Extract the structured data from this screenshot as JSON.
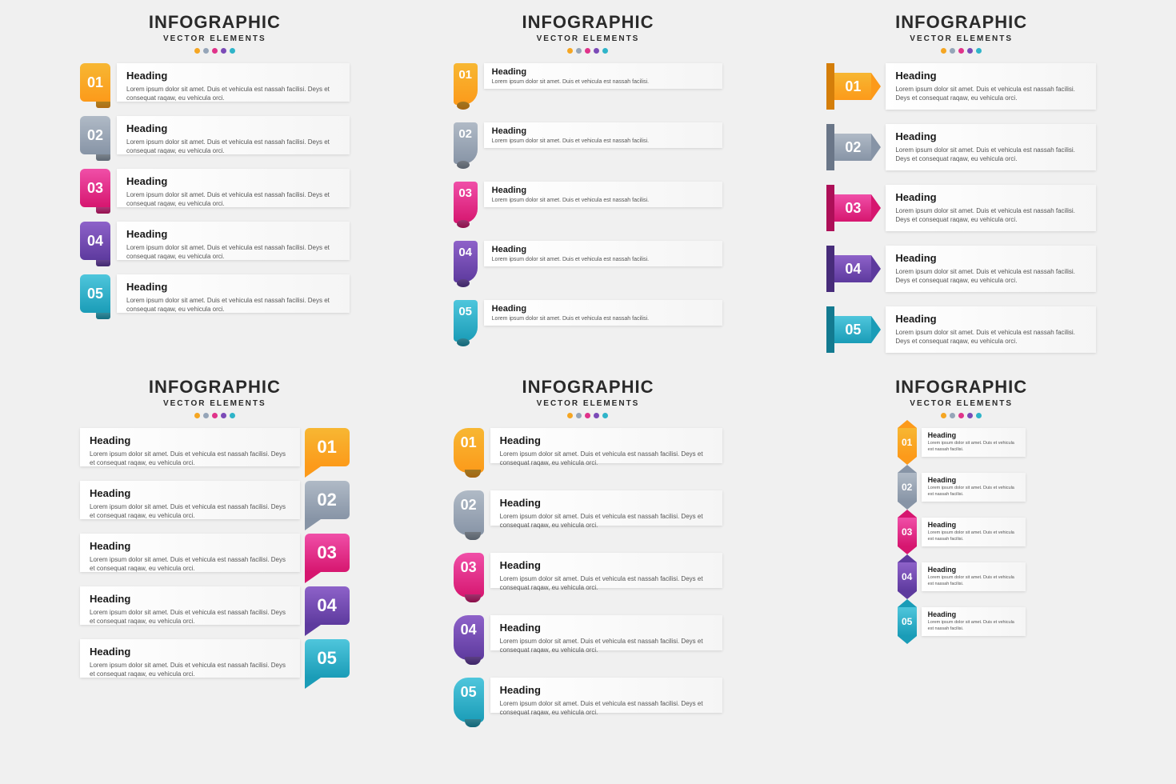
{
  "title": "INFOGRAPHIC",
  "subtitle": "VECTOR ELEMENTS",
  "dot_colors": [
    "#f5a623",
    "#95a5b8",
    "#e0338a",
    "#7b4bb7",
    "#2fb4c9"
  ],
  "heading_label": "Heading",
  "body_text": "Lorem ipsum dolor sit amet. Duis et vehicula est nassah facilisi. Deys et consequat raqaw, eu vehicula orci.",
  "body_text_short": "Lorem ipsum dolor sit amet. Duis et vehicula est nassah facilisi.",
  "items": [
    {
      "num": "01",
      "g1": "#f7b733",
      "g2": "#fc9a1a",
      "dark": "#d47e0a"
    },
    {
      "num": "02",
      "g1": "#b0bac6",
      "g2": "#8794a6",
      "dark": "#6a7688"
    },
    {
      "num": "03",
      "g1": "#f04fa8",
      "g2": "#d6166f",
      "dark": "#ad0f58"
    },
    {
      "num": "04",
      "g1": "#8e62c9",
      "g2": "#5d3a9e",
      "dark": "#472c7a"
    },
    {
      "num": "05",
      "g1": "#4fc6dc",
      "g2": "#1a9cb7",
      "dark": "#137a90"
    }
  ],
  "panels": [
    "a",
    "b",
    "c",
    "d",
    "e",
    "f"
  ],
  "background_color": "#f0f0f0",
  "card_bg": "#ffffff",
  "text_color": "#2a2a2a",
  "body_color": "#555555",
  "title_fontsize": 22,
  "subtitle_fontsize": 10,
  "heading_fontsize": 13,
  "body_fontsize": 8,
  "num_fontsize": 18
}
